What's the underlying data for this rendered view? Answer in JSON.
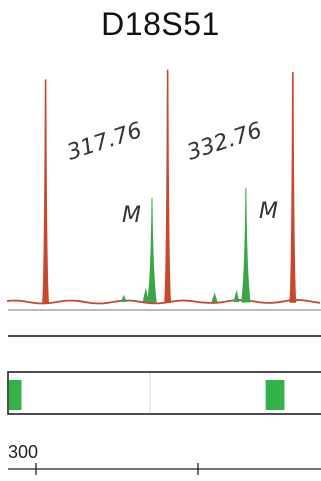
{
  "title": "D18S51",
  "colors": {
    "size_standard": "#c8482e",
    "sample": "#3aa648",
    "bin": "#34b24a",
    "baseline": "#c8482e"
  },
  "annotations": {
    "size_1": "317.76",
    "size_2": "332.76",
    "mark_1": "M",
    "mark_2": "M"
  },
  "axis": {
    "tick_label": "300"
  },
  "chart_data": {
    "type": "line",
    "title": "D18S51",
    "x_tick_labels": [
      "300"
    ],
    "series": [
      {
        "color": "#c8482e",
        "peaks": [
          {
            "x": 0.12,
            "height": 0.92
          },
          {
            "x": 0.51,
            "height": 0.96
          },
          {
            "x": 0.91,
            "height": 0.95
          }
        ]
      },
      {
        "color": "#3aa648",
        "peaks": [
          {
            "x": 0.46,
            "height": 0.43
          },
          {
            "x": 0.76,
            "height": 0.47
          }
        ]
      }
    ],
    "annotations": [
      "317.76",
      "332.76",
      "M",
      "M"
    ],
    "bins": [
      {
        "x_start": 0.0,
        "x_end": 0.04
      },
      {
        "x_start": 0.82,
        "x_end": 0.88
      }
    ],
    "grid": false
  }
}
